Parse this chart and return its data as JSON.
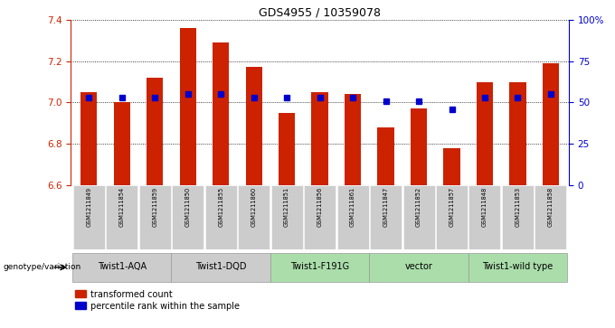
{
  "title": "GDS4955 / 10359078",
  "samples": [
    "GSM1211849",
    "GSM1211854",
    "GSM1211859",
    "GSM1211850",
    "GSM1211855",
    "GSM1211860",
    "GSM1211851",
    "GSM1211856",
    "GSM1211861",
    "GSM1211847",
    "GSM1211852",
    "GSM1211857",
    "GSM1211848",
    "GSM1211853",
    "GSM1211858"
  ],
  "red_values": [
    7.05,
    7.0,
    7.12,
    7.36,
    7.29,
    7.17,
    6.95,
    7.05,
    7.04,
    6.88,
    6.97,
    6.78,
    7.1,
    7.1,
    7.19
  ],
  "blue_values": [
    53,
    53,
    53,
    55,
    55,
    53,
    53,
    53,
    53,
    51,
    51,
    46,
    53,
    53,
    55
  ],
  "ylim_left": [
    6.6,
    7.4
  ],
  "ylim_right": [
    0,
    100
  ],
  "yticks_left": [
    6.6,
    6.8,
    7.0,
    7.2,
    7.4
  ],
  "yticks_right": [
    0,
    25,
    50,
    75,
    100
  ],
  "ytick_labels_right": [
    "0",
    "25",
    "50",
    "75",
    "100%"
  ],
  "groups": [
    {
      "label": "Twist1-AQA",
      "indices": [
        0,
        1,
        2
      ],
      "color": "#cccccc"
    },
    {
      "label": "Twist1-DQD",
      "indices": [
        3,
        4,
        5
      ],
      "color": "#cccccc"
    },
    {
      "label": "Twist1-F191G",
      "indices": [
        6,
        7,
        8
      ],
      "color": "#aaddaa"
    },
    {
      "label": "vector",
      "indices": [
        9,
        10,
        11
      ],
      "color": "#aaddaa"
    },
    {
      "label": "Twist1-wild type",
      "indices": [
        12,
        13,
        14
      ],
      "color": "#aaddaa"
    }
  ],
  "bar_color": "#cc2200",
  "dot_color": "#0000cc",
  "background_color": "#ffffff",
  "legend_label_red": "transformed count",
  "legend_label_blue": "percentile rank within the sample",
  "genotype_label": "genotype/variation",
  "ylabel_left_color": "#cc2200",
  "ylabel_right_color": "#0000cc",
  "sample_bg_color": "#cccccc",
  "bar_bottom": 6.6,
  "bar_width": 0.5
}
